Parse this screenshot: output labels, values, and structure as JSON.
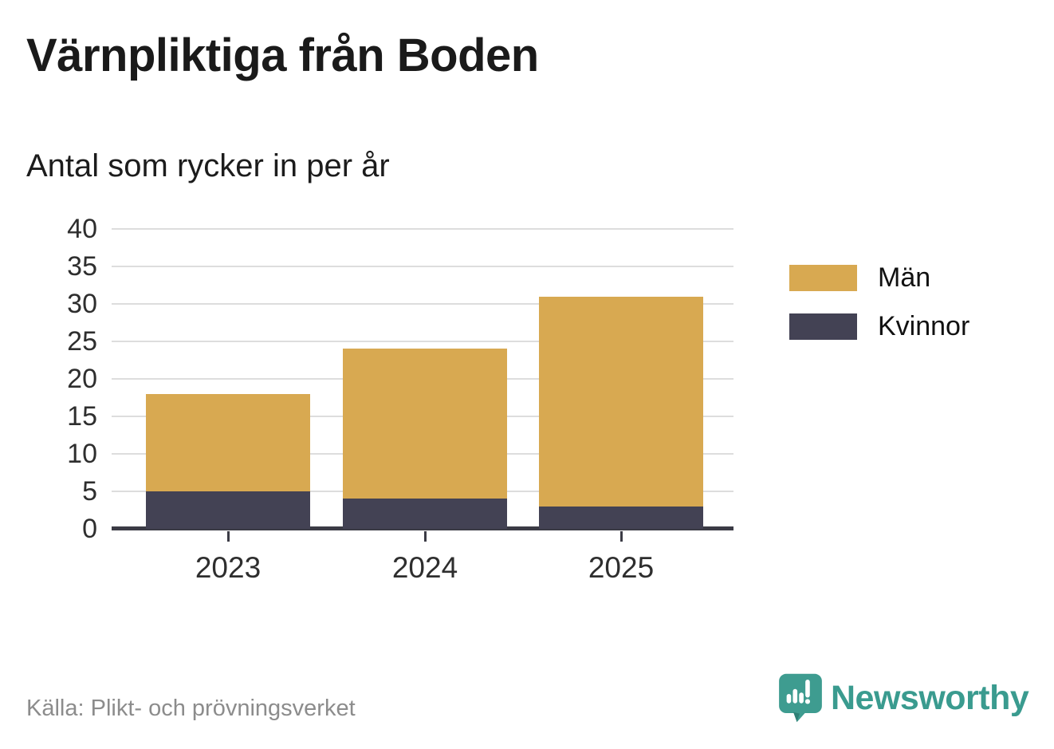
{
  "header": {
    "title": "Värnpliktiga från Boden",
    "subtitle": "Antal som rycker in per år"
  },
  "chart_data": {
    "type": "bar",
    "stacked": true,
    "title": "Värnpliktiga från Boden",
    "subtitle": "Antal som rycker in per år",
    "categories": [
      "2023",
      "2024",
      "2025"
    ],
    "series": [
      {
        "name": "Män",
        "color": "#D8A951",
        "values": [
          13,
          20,
          28
        ]
      },
      {
        "name": "Kvinnor",
        "color": "#434254",
        "values": [
          5,
          4,
          3
        ]
      }
    ],
    "stack_totals": [
      18,
      24,
      31
    ],
    "xlabel": "",
    "ylabel": "",
    "ylim": [
      0,
      40
    ],
    "yticks": [
      0,
      5,
      10,
      15,
      20,
      25,
      30,
      35,
      40
    ],
    "grid": true,
    "legend_position": "right-top"
  },
  "footer": {
    "source": "Källa: Plikt- och prövningsverket",
    "brand": "Newsworthy"
  },
  "colors": {
    "men": "#D8A951",
    "women": "#434254",
    "gridline": "#DDDDDD",
    "axis": "#3B3B45",
    "brand_teal": "#3A9B8F",
    "source_text": "#8C8C8C",
    "title_text": "#1A1A1A"
  }
}
